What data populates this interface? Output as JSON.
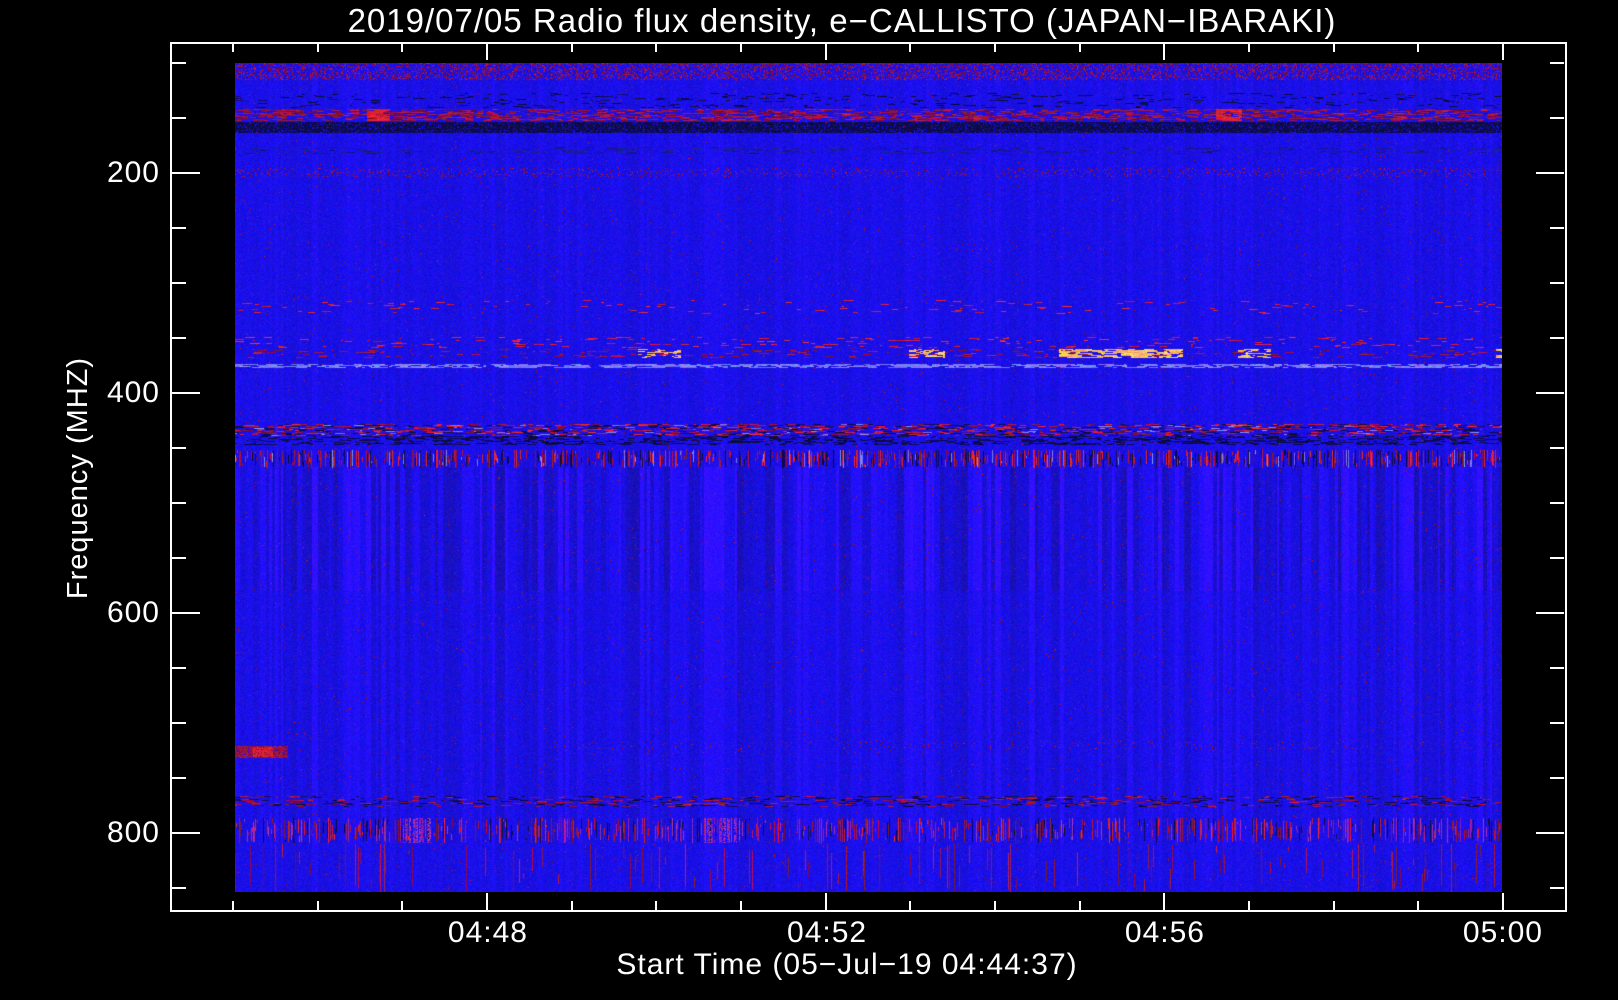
{
  "page": {
    "background": "#000000",
    "text_color": "#ffffff",
    "frame_color": "#ffffff"
  },
  "chart_data": {
    "type": "heatmap",
    "title": "2019/07/05  Radio flux density, e−CALLISTO (JAPAN−IBARAKI)",
    "xlabel": "Start Time (05−Jul−19 04:44:37)",
    "ylabel": "Frequency (MHZ)",
    "instrument": "e-CALLISTO",
    "station": "JAPAN-IBARAKI",
    "date": "2019/07/05",
    "start_time": "04:44:37",
    "x_axis": {
      "tick_labels": [
        "04:48",
        "04:52",
        "04:56",
        "05:00"
      ],
      "major_fracs": [
        0.2272,
        0.4703,
        0.7125,
        0.9548
      ],
      "minor_start_frac": 0.0444,
      "minor_step_frac": 0.0607,
      "minor_interval": "1 min"
    },
    "y_axis": {
      "tick_labels": [
        "200",
        "400",
        "600",
        "800"
      ],
      "major_fracs": [
        0.1496,
        0.4027,
        0.6559,
        0.9091
      ],
      "minor_start_frac": 0.023,
      "minor_step_frac": 0.0633,
      "units": "MHz",
      "displayed_data_range": [
        100,
        854
      ],
      "direction": "increasing-downward"
    },
    "legend": "none",
    "grid": "off",
    "colors": {
      "base_blue": [
        20,
        8,
        210
      ],
      "palettes": {
        "darkred": {
          "r": [
            110,
            200
          ],
          "g": [
            5,
            35
          ],
          "b": [
            30,
            90
          ]
        },
        "red": {
          "r": [
            190,
            255
          ],
          "g": [
            15,
            50
          ],
          "b": [
            25,
            70
          ]
        },
        "orange": {
          "r": [
            250,
            255
          ],
          "g": [
            150,
            220
          ],
          "b": [
            60,
            150
          ]
        },
        "dark": {
          "r": [
            6,
            20
          ],
          "g": [
            6,
            18
          ],
          "b": [
            40,
            110
          ]
        },
        "darkblue": {
          "r": [
            15,
            35
          ],
          "g": [
            15,
            35
          ],
          "b": [
            120,
            180
          ]
        },
        "lightblue": {
          "r": [
            100,
            150
          ],
          "g": [
            100,
            150
          ],
          "b": [
            240,
            255
          ]
        },
        "purple": {
          "r": [
            130,
            180
          ],
          "g": [
            25,
            60
          ],
          "b": [
            150,
            210
          ]
        }
      }
    },
    "stripe_regions": [
      {
        "y0": 0.0,
        "y1": 0.487,
        "amp": 0.22
      },
      {
        "y0": 0.487,
        "y1": 0.636,
        "amp": 0.95
      },
      {
        "y0": 0.636,
        "y1": 0.94,
        "amp": 0.45
      }
    ],
    "features": [
      {
        "name": "top-edge-mottle",
        "kind": "speckle",
        "y0": 0.0,
        "y1": 0.02,
        "density": 0.28,
        "palette": "darkred"
      },
      {
        "name": "upper-dark-dashes",
        "kind": "dash",
        "y0": 0.036,
        "y1": 0.054,
        "density": 0.1,
        "palette": "dark"
      },
      {
        "name": "rfi-band-150mhz-red",
        "kind": "dash",
        "y0": 0.055,
        "y1": 0.07,
        "density": 0.5,
        "palette": "darkred",
        "bright": [
          {
            "x0": 0.104,
            "x1": 0.122,
            "palette": "red",
            "density": 0.85
          },
          {
            "x0": 0.774,
            "x1": 0.795,
            "palette": "red",
            "density": 0.85
          }
        ]
      },
      {
        "name": "rfi-band-157mhz-black",
        "kind": "fill",
        "y0": 0.071,
        "y1": 0.085,
        "palette": "dark"
      },
      {
        "name": "faint-dashes-180mhz",
        "kind": "dash",
        "y0": 0.101,
        "y1": 0.11,
        "density": 0.22,
        "palette": "darkblue"
      },
      {
        "name": "speckle-row-200mhz",
        "kind": "speckle",
        "y0": 0.127,
        "y1": 0.137,
        "density": 0.1,
        "palette": "darkred"
      },
      {
        "name": "red-dashes-315mhz",
        "kind": "dash",
        "y0": 0.286,
        "y1": 0.303,
        "density": 0.045,
        "palette": "red"
      },
      {
        "name": "red-dashes-350mhz",
        "kind": "dash",
        "y0": 0.33,
        "y1": 0.344,
        "density": 0.09,
        "palette": "red"
      },
      {
        "name": "orange-row-365mhz",
        "kind": "dash",
        "y0": 0.345,
        "y1": 0.356,
        "density": 0.12,
        "palette": "darkred",
        "bright": [
          {
            "x0": 0.65,
            "x1": 0.748,
            "palette": "orange",
            "density": 0.75
          },
          {
            "x0": 0.318,
            "x1": 0.352,
            "palette": "orange",
            "density": 0.45
          },
          {
            "x0": 0.532,
            "x1": 0.56,
            "palette": "orange",
            "density": 0.5
          },
          {
            "x0": 0.792,
            "x1": 0.818,
            "palette": "orange",
            "density": 0.5
          },
          {
            "x0": 0.995,
            "x1": 1.0,
            "palette": "orange",
            "density": 0.6
          }
        ]
      },
      {
        "name": "light-line-378mhz",
        "kind": "dash",
        "y0": 0.363,
        "y1": 0.368,
        "density": 0.65,
        "palette": "lightblue"
      },
      {
        "name": "mixed-band-430mhz",
        "kind": "dash",
        "y0": 0.435,
        "y1": 0.45,
        "density": 0.45,
        "palette": "mixed"
      },
      {
        "name": "dark-band-440mhz",
        "kind": "dash",
        "y0": 0.45,
        "y1": 0.461,
        "density": 0.4,
        "palette": "dark"
      },
      {
        "name": "heavy-speckle-460mhz",
        "kind": "vtick",
        "y0": 0.467,
        "y1": 0.488,
        "density": 0.55,
        "palette": "mixed"
      },
      {
        "name": "sparse-row-718mhz",
        "kind": "speckle",
        "y0": 0.818,
        "y1": 0.828,
        "x0": 0.25,
        "x1": 1.0,
        "density": 0.03,
        "palette": "darkred"
      },
      {
        "name": "left-red-blob-725mhz",
        "kind": "fill",
        "y0": 0.824,
        "y1": 0.838,
        "x0": 0.0,
        "x1": 0.042,
        "palette": "darkred",
        "core": {
          "x0": 0.014,
          "x1": 0.03,
          "palette": "red"
        }
      },
      {
        "name": "band-770mhz",
        "kind": "dash",
        "y0": 0.884,
        "y1": 0.898,
        "density": 0.3,
        "palette": "darkmix"
      },
      {
        "name": "band-790mhz-dense",
        "kind": "vtick",
        "y0": 0.911,
        "y1": 0.941,
        "density": 0.45,
        "palette": "redmix",
        "bright": [
          {
            "x0": 0.13,
            "x1": 0.154,
            "palette": "purple",
            "density": 0.7
          },
          {
            "x0": 0.37,
            "x1": 0.4,
            "palette": "purple",
            "density": 0.5
          }
        ]
      },
      {
        "name": "bottom-edge-noise",
        "kind": "vtick",
        "y0": 0.942,
        "y1": 1.0,
        "density": 0.12,
        "palette": "darkred"
      }
    ]
  }
}
